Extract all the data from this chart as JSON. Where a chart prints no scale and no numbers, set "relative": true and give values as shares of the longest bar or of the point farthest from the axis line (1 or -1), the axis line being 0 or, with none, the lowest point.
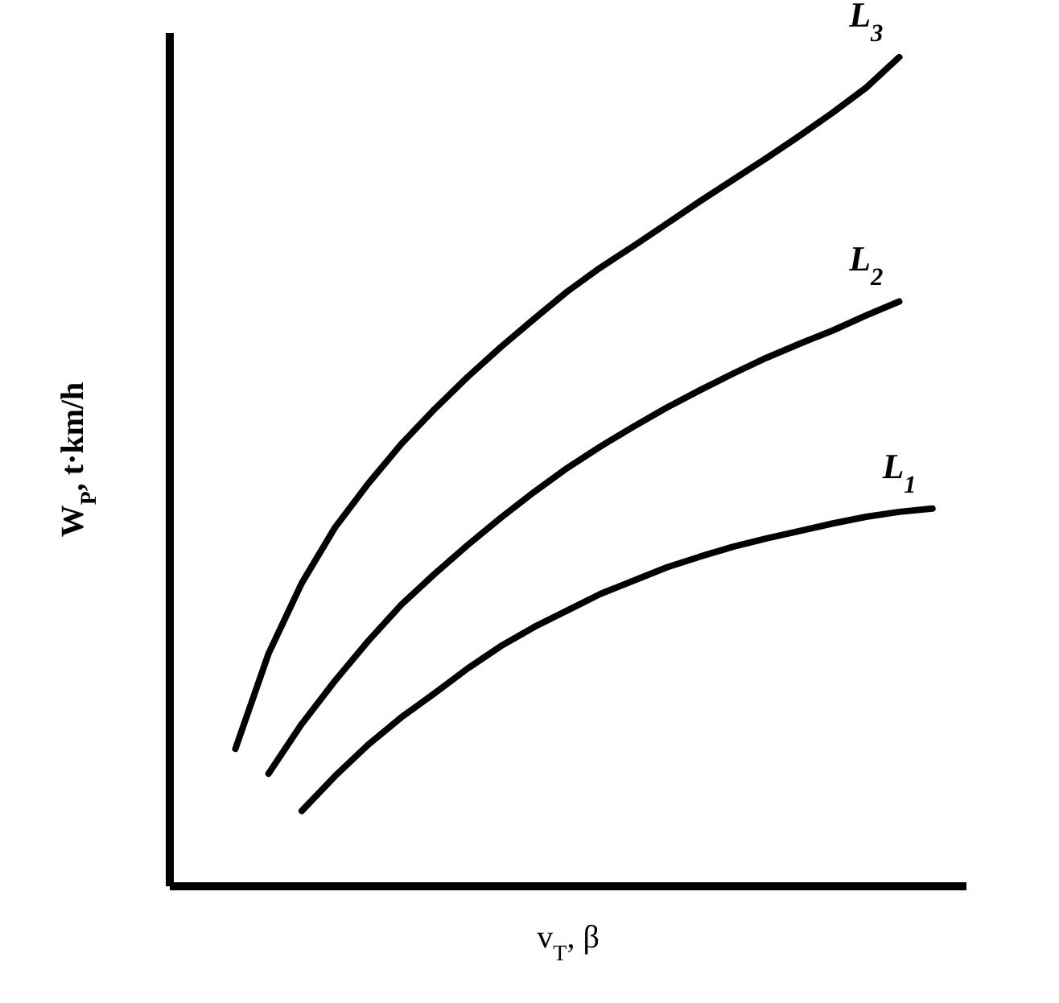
{
  "chart_data": {
    "type": "line",
    "relative": true,
    "xlabel": "v$_{T}$, β",
    "ylabel": "W$_{P}$, t·km/h",
    "grid": false,
    "legend": false,
    "categories": [
      null,
      null,
      null,
      null,
      null,
      null,
      null,
      null,
      null,
      null,
      null,
      null,
      null,
      null,
      null,
      null,
      null,
      null,
      null,
      null,
      null,
      null,
      null,
      null,
      null
    ],
    "series": [
      {
        "name": "L$_{3}$",
        "color": "#000000",
        "values": [
          null,
          null,
          0.165,
          0.28,
          0.365,
          0.432,
          0.485,
          0.533,
          0.575,
          0.614,
          0.65,
          0.684,
          0.717,
          0.746,
          0.772,
          0.799,
          0.826,
          0.852,
          0.878,
          0.905,
          0.933,
          0.963,
          1,
          null,
          null
        ]
      },
      {
        "name": "L$_{2}$",
        "color": "#000000",
        "values": [
          null,
          null,
          null,
          0.135,
          0.195,
          0.247,
          0.295,
          0.339,
          0.376,
          0.411,
          0.444,
          0.475,
          0.504,
          0.53,
          0.554,
          0.577,
          0.598,
          0.618,
          0.637,
          0.654,
          0.67,
          0.688,
          0.705,
          null,
          null
        ]
      },
      {
        "name": "L$_{1}$",
        "color": "#000000",
        "values": [
          null,
          null,
          null,
          null,
          0.09,
          0.132,
          0.17,
          0.203,
          0.232,
          0.262,
          0.289,
          0.312,
          0.332,
          0.352,
          0.368,
          0.384,
          0.397,
          0.409,
          0.419,
          0.428,
          0.437,
          0.445,
          0.451,
          0.455,
          null
        ]
      }
    ]
  }
}
